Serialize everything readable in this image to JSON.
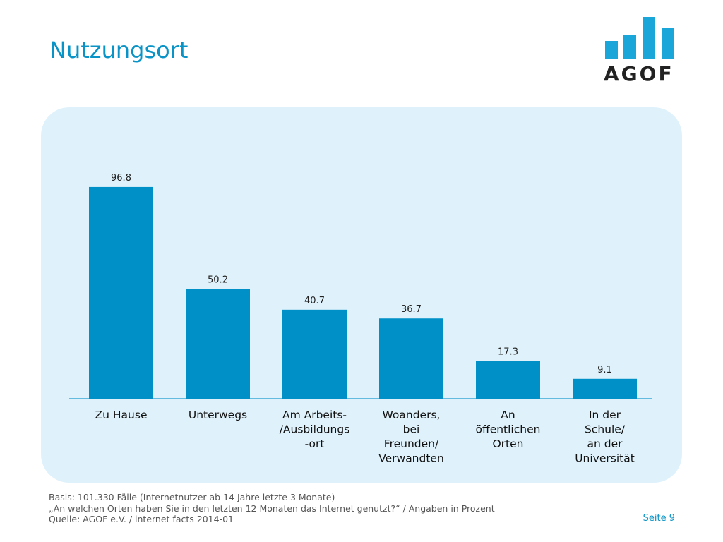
{
  "page": {
    "title": "Nutzungsort",
    "logo_text": "AGOF",
    "page_number": "Seite 9"
  },
  "footnotes": [
    "Basis: 101.330 Fälle (Internetnutzer ab 14 Jahre letzte 3 Monate)",
    "„An welchen Orten haben Sie in den letzten 12 Monaten das Internet genutzt?“ / Angaben in Prozent",
    "Quelle: AGOF e.V. / internet facts 2014-01"
  ],
  "colors": {
    "bar": "#0090c8",
    "title": "#0a93c6",
    "panel": "#dff2fb",
    "axis": "#3aa9d6",
    "logo": "#1aa6d8"
  },
  "chart_data": {
    "type": "bar",
    "categories": [
      "Zu Hause",
      "Unterwegs",
      "Am Arbeits-\n/Ausbildungs\n-ort",
      "Woanders,\nbei\nFreunden/\nVerwandten",
      "An\nöffentlichen\nOrten",
      "In der\nSchule/\nan der\nUniversität"
    ],
    "values": [
      96.8,
      50.2,
      40.7,
      36.7,
      17.3,
      9.1
    ],
    "data_labels": [
      "96.8",
      "50.2",
      "40.7",
      "36.7",
      "17.3",
      "9.1"
    ],
    "ylim": [
      0,
      100
    ],
    "grid": false,
    "legend": "none"
  }
}
